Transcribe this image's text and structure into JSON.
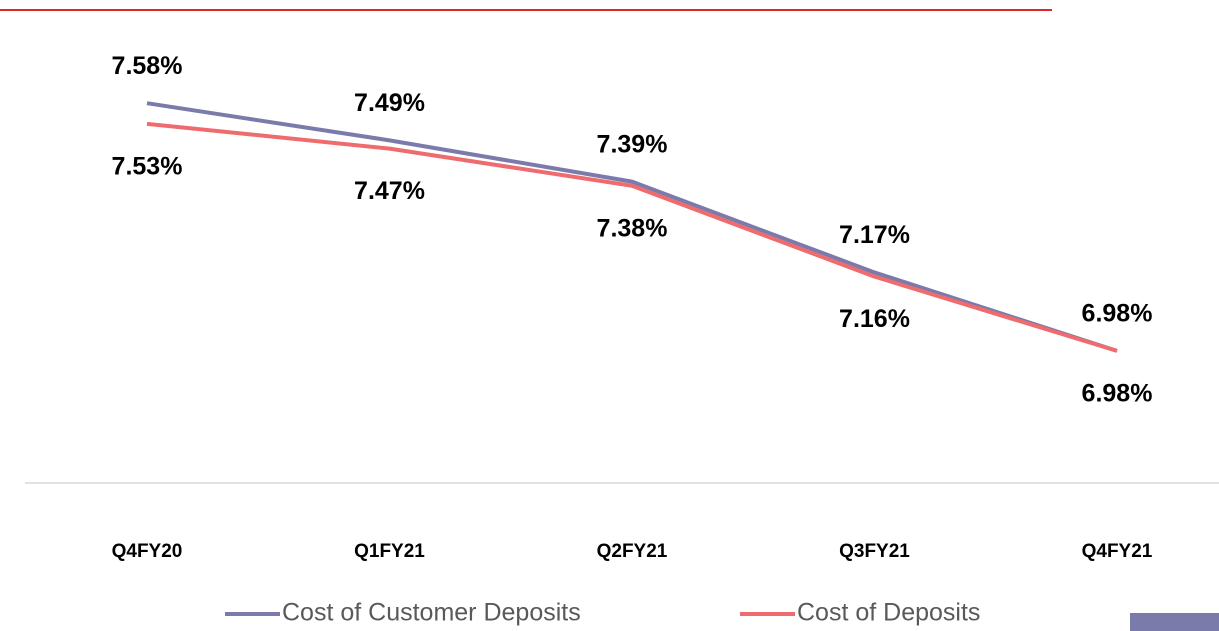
{
  "chart_data": {
    "type": "line",
    "categories": [
      "Q4FY20",
      "Q1FY21",
      "Q2FY21",
      "Q3FY21",
      "Q4FY21"
    ],
    "series": [
      {
        "name": "Cost of Customer Deposits",
        "color": "#7b7bab",
        "values": [
          7.58,
          7.49,
          7.39,
          7.17,
          6.98
        ],
        "value_labels": [
          "7.58%",
          "7.49%",
          "7.39%",
          "7.17%",
          "6.98%"
        ]
      },
      {
        "name": "Cost of Deposits",
        "color": "#ee6b6e",
        "values": [
          7.53,
          7.47,
          7.38,
          7.16,
          6.98
        ],
        "value_labels": [
          "7.53%",
          "7.47%",
          "7.38%",
          "7.16%",
          "6.98%"
        ]
      }
    ],
    "ylim": [
      6.66,
      7.83
    ]
  }
}
